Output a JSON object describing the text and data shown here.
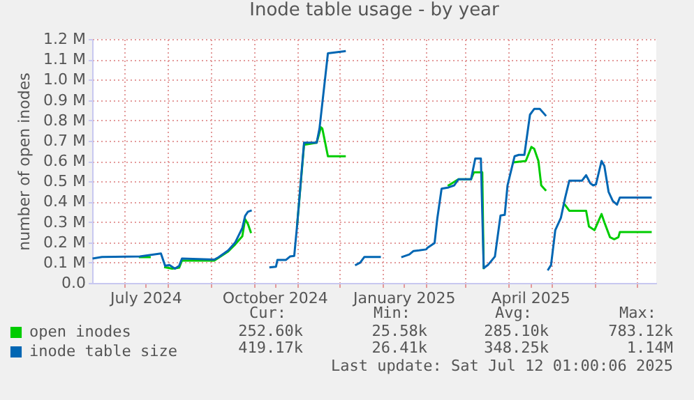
{
  "chart_data": {
    "type": "line",
    "title": "Inode table usage - by year",
    "ylabel": "number of open inodes",
    "xlim": [
      "2024-06-08",
      "2025-07-15"
    ],
    "xticks": [
      {
        "value": "2024-07-01",
        "label": null
      },
      {
        "value": "2024-07-16",
        "label": "July 2024"
      },
      {
        "value": "2024-08-01",
        "label": null
      },
      {
        "value": "2024-09-01",
        "label": null
      },
      {
        "value": "2024-10-01",
        "label": null
      },
      {
        "value": "2024-10-16",
        "label": "October 2024"
      },
      {
        "value": "2024-11-01",
        "label": null
      },
      {
        "value": "2024-12-01",
        "label": null
      },
      {
        "value": "2025-01-01",
        "label": null
      },
      {
        "value": "2025-01-16",
        "label": "January 2025"
      },
      {
        "value": "2025-02-01",
        "label": null
      },
      {
        "value": "2025-03-01",
        "label": null
      },
      {
        "value": "2025-04-01",
        "label": null
      },
      {
        "value": "2025-04-16",
        "label": "April 2025"
      },
      {
        "value": "2025-05-01",
        "label": null
      },
      {
        "value": "2025-06-01",
        "label": null
      },
      {
        "value": "2025-07-01",
        "label": null
      }
    ],
    "ylim": [
      0,
      1200000
    ],
    "yticks": [
      {
        "value": 0,
        "label": "0.0"
      },
      {
        "value": 100000,
        "label": "0.1 M"
      },
      {
        "value": 200000,
        "label": "0.2 M"
      },
      {
        "value": 300000,
        "label": "0.3 M"
      },
      {
        "value": 400000,
        "label": "0.4 M"
      },
      {
        "value": 500000,
        "label": "0.5 M"
      },
      {
        "value": 600000,
        "label": "0.6 M"
      },
      {
        "value": 700000,
        "label": "0.7 M"
      },
      {
        "value": 800000,
        "label": "0.8 M"
      },
      {
        "value": 900000,
        "label": "0.9 M"
      },
      {
        "value": 1000000,
        "label": "1.0 M"
      },
      {
        "value": 1100000,
        "label": "1.1 M"
      },
      {
        "value": 1200000,
        "label": "1.2 M"
      }
    ],
    "grid": true,
    "legend": "bottom left",
    "marker": "none",
    "line_style": "solid",
    "series": [
      {
        "name": "open inodes",
        "color": "#00cc00",
        "x": [
          "2024-07-12",
          "2024-07-19",
          "2024-07-24",
          "2024-07-30",
          "2024-08-04",
          "2024-08-09",
          "2024-08-11",
          "2024-09-03",
          "2024-09-13",
          "2024-09-18",
          "2024-09-23",
          "2024-09-25",
          "2024-09-27",
          "2024-09-29",
          "2024-10-20",
          "2024-11-01",
          "2024-11-06",
          "2024-11-15",
          "2024-11-18",
          "2024-11-19",
          "2024-11-23",
          "2024-12-05",
          "2025-01-01",
          "2025-02-17",
          "2025-02-24",
          "2025-03-05",
          "2025-03-07",
          "2025-03-13",
          "2025-03-14",
          "2025-03-20",
          "2025-04-05",
          "2025-04-13",
          "2025-04-17",
          "2025-04-19",
          "2025-04-22",
          "2025-04-24",
          "2025-04-27",
          "2025-05-05",
          "2025-05-11",
          "2025-05-14",
          "2025-05-26",
          "2025-05-28",
          "2025-06-01",
          "2025-06-06",
          "2025-06-08",
          "2025-06-12",
          "2025-06-15",
          "2025-06-18",
          "2025-06-19",
          "2025-06-26",
          "2025-07-11"
        ],
        "values": [
          127000,
          127000,
          null,
          77000,
          70000,
          75000,
          110000,
          110000,
          155000,
          190000,
          230000,
          314000,
          290000,
          250000,
          null,
          280000,
          680000,
          690000,
          766000,
          760000,
          623000,
          623000,
          null,
          480000,
          510000,
          510000,
          544000,
          544000,
          73000,
          null,
          594000,
          600000,
          669000,
          660000,
          600000,
          480000,
          457000,
          null,
          384000,
          355000,
          355000,
          278000,
          260000,
          339000,
          298000,
          225000,
          215000,
          225000,
          250000,
          250000,
          250000
        ]
      },
      {
        "name": "inode table size",
        "color": "#0066b3",
        "x": [
          "2024-06-09",
          "2024-06-15",
          "2024-07-12",
          "2024-07-27",
          "2024-07-30",
          "2024-08-02",
          "2024-08-06",
          "2024-08-09",
          "2024-08-11",
          "2024-09-03",
          "2024-09-06",
          "2024-09-13",
          "2024-09-18",
          "2024-09-23",
          "2024-09-25",
          "2024-09-27",
          "2024-09-29",
          "2024-10-06",
          "2024-10-13",
          "2024-10-17",
          "2024-10-18",
          "2024-10-24",
          "2024-10-27",
          "2024-10-30",
          "2024-11-01",
          "2024-11-06",
          "2024-11-15",
          "2024-11-17",
          "2024-11-23",
          "2024-12-05",
          "2024-12-09",
          "2024-12-13",
          "2024-12-16",
          "2024-12-19",
          "2024-12-30",
          "2025-01-07",
          "2025-01-15",
          "2025-01-20",
          "2025-01-23",
          "2025-01-27",
          "2025-02-01",
          "2025-02-02",
          "2025-02-07",
          "2025-02-09",
          "2025-02-12",
          "2025-02-17",
          "2025-02-21",
          "2025-02-24",
          "2025-03-05",
          "2025-03-08",
          "2025-03-12",
          "2025-03-14",
          "2025-03-17",
          "2025-03-22",
          "2025-03-26",
          "2025-03-29",
          "2025-03-31",
          "2025-04-05",
          "2025-04-08",
          "2025-04-12",
          "2025-04-16",
          "2025-04-19",
          "2025-04-23",
          "2025-04-27",
          "2025-04-28",
          "2025-04-29",
          "2025-05-01",
          "2025-05-04",
          "2025-05-08",
          "2025-05-11",
          "2025-05-14",
          "2025-05-23",
          "2025-05-26",
          "2025-05-29",
          "2025-05-31",
          "2025-06-02",
          "2025-06-06",
          "2025-06-08",
          "2025-06-11",
          "2025-06-14",
          "2025-06-17",
          "2025-06-19",
          "2025-06-26",
          "2025-07-11"
        ],
        "values": [
          121000,
          128000,
          130000,
          145000,
          84000,
          88000,
          70000,
          84000,
          120000,
          115000,
          126000,
          160000,
          200000,
          270000,
          330000,
          350000,
          355000,
          null,
          77000,
          80000,
          113000,
          113000,
          130000,
          133000,
          280000,
          690000,
          690000,
          760000,
          1130000,
          1140000,
          null,
          89000,
          100000,
          128000,
          128000,
          null,
          128000,
          140000,
          157000,
          160000,
          165000,
          173000,
          196000,
          320000,
          464000,
          470000,
          480000,
          510000,
          510000,
          612000,
          612000,
          73000,
          88000,
          130000,
          332000,
          335000,
          480000,
          623000,
          630000,
          630000,
          828000,
          856000,
          856000,
          825000,
          null,
          66000,
          88000,
          259000,
          320000,
          418000,
          503000,
          503000,
          530000,
          490000,
          480000,
          485000,
          600000,
          575000,
          448000,
          403000,
          385000,
          420000,
          420000,
          420000
        ]
      }
    ],
    "annotations": [
      "Cur:",
      "Min:",
      "Avg:",
      "Max:",
      "252.60k",
      "25.58k",
      "285.10k",
      "783.12k",
      "419.17k",
      "26.41k",
      "348.25k",
      "1.14M",
      "Last update: Sat Jul 12 01:00:06 2025"
    ]
  }
}
